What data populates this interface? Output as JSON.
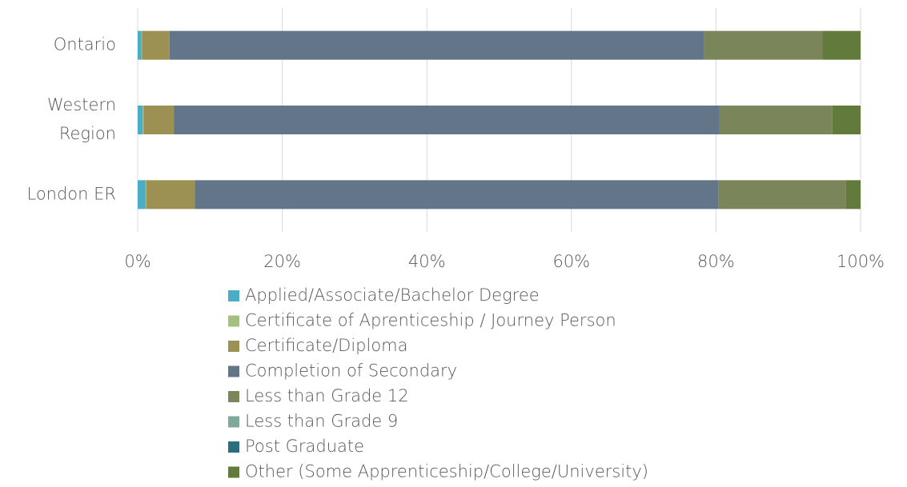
{
  "chart_data": {
    "type": "stacked_barh",
    "categories": [
      "Ontario",
      "Western Region",
      "London ER"
    ],
    "series": [
      {
        "name": "Applied/Associate/Bachelor Degree",
        "color": "#4bacc6",
        "values": [
          0.5,
          0.7,
          1.1
        ]
      },
      {
        "name": "Certificate of Aprenticeship / Journey Person",
        "color": "#a5c07e",
        "values": [
          0.1,
          0.1,
          0.1
        ]
      },
      {
        "name": "Certificate/Diploma",
        "color": "#9c9152",
        "values": [
          3.8,
          4.2,
          6.7
        ]
      },
      {
        "name": "Completion of Secondary",
        "color": "#637689",
        "values": [
          73.9,
          75.5,
          72.4
        ]
      },
      {
        "name": "Less than Grade 12",
        "color": "#7a8659",
        "values": [
          16.4,
          15.6,
          17.7
        ]
      },
      {
        "name": "Less than Grade 9",
        "color": "#7fa99a",
        "values": [
          0,
          0,
          0
        ]
      },
      {
        "name": "Post Graduate",
        "color": "#2a6e80",
        "values": [
          0,
          0,
          0
        ]
      },
      {
        "name": "Other (Some Apprenticeship/College/University)",
        "color": "#627a3c",
        "values": [
          5.3,
          3.9,
          2.0
        ]
      }
    ],
    "xlim": [
      0,
      100
    ],
    "xticks": [
      {
        "value": 0,
        "label": "0%"
      },
      {
        "value": 20,
        "label": "20%"
      },
      {
        "value": 40,
        "label": "40%"
      },
      {
        "value": 60,
        "label": "60%"
      },
      {
        "value": 80,
        "label": "80%"
      },
      {
        "value": 100,
        "label": "100%"
      }
    ],
    "grid": true,
    "legend": "bottom"
  }
}
